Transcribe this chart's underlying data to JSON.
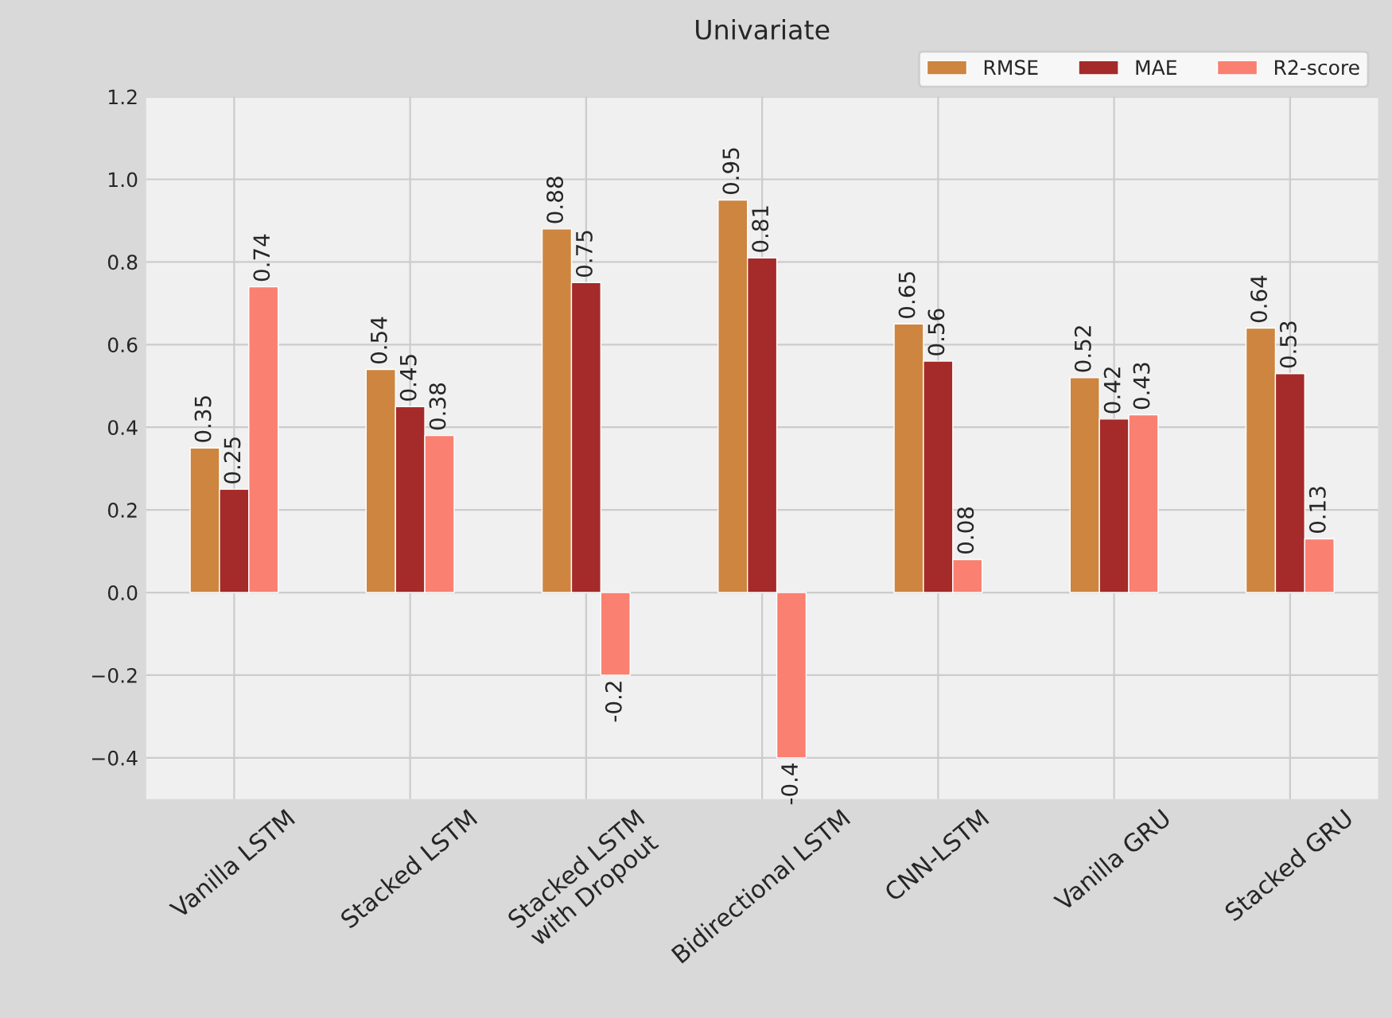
{
  "chart_data": {
    "type": "bar",
    "title": "Univariate",
    "categories": [
      "Vanilla LSTM",
      "Stacked LSTM",
      "Stacked LSTM\nwith Dropout",
      "Bidirectional LSTM",
      "CNN-LSTM",
      "Vanilla GRU",
      "Stacked GRU"
    ],
    "series": [
      {
        "name": "RMSE",
        "color": "#cd853f",
        "values": [
          0.35,
          0.54,
          0.88,
          0.95,
          0.65,
          0.52,
          0.64
        ]
      },
      {
        "name": "MAE",
        "color": "#a52a2a",
        "values": [
          0.25,
          0.45,
          0.75,
          0.81,
          0.56,
          0.42,
          0.53
        ]
      },
      {
        "name": "R2-score",
        "color": "#fa8072",
        "values": [
          0.74,
          0.38,
          -0.2,
          -0.4,
          0.08,
          0.43,
          0.13
        ]
      }
    ],
    "ylim": [
      -0.5,
      1.2
    ],
    "yticks": [
      {
        "value": -0.4,
        "label": "−0.4"
      },
      {
        "value": -0.2,
        "label": "−0.2"
      },
      {
        "value": 0,
        "label": "0.0"
      },
      0.2,
      0.4,
      0.6,
      0.8,
      {
        "value": 1,
        "label": "1.0"
      },
      1.2
    ],
    "grid": true,
    "legend": "top right",
    "data_labels": true
  }
}
